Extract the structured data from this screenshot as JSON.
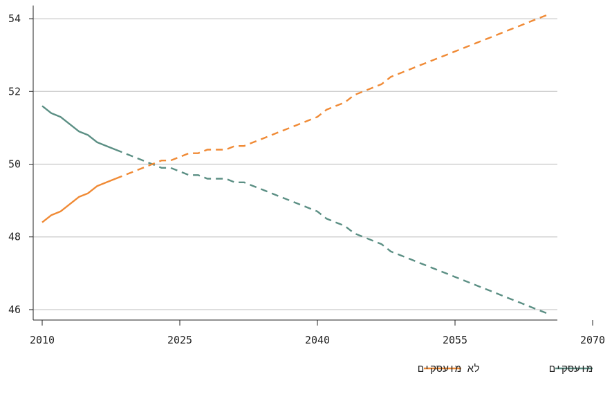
{
  "chart_data": {
    "type": "line",
    "xlim": [
      2010,
      2070
    ],
    "ylim": [
      45.6,
      54.4
    ],
    "x_ticks": [
      2010,
      2025,
      2040,
      2055,
      2070
    ],
    "y_ticks": [
      46,
      48,
      50,
      52,
      54
    ],
    "grid": "horizontal",
    "legend_position": "bottom-right",
    "series": [
      {
        "name": "מועסקים",
        "color": "#5b8f84",
        "actual_until": 2018,
        "x": [
          2010,
          2011,
          2012,
          2013,
          2014,
          2015,
          2016,
          2017,
          2018,
          2019,
          2020,
          2021,
          2022,
          2023,
          2024,
          2025,
          2026,
          2027,
          2028,
          2029,
          2030,
          2031,
          2032,
          2033,
          2034,
          2035,
          2036,
          2037,
          2038,
          2039,
          2040,
          2041,
          2042,
          2043,
          2044,
          2045,
          2046,
          2047,
          2048,
          2049,
          2050,
          2051,
          2052,
          2053,
          2054,
          2055,
          2056,
          2057,
          2058,
          2059,
          2060,
          2061,
          2062,
          2063,
          2064,
          2065
        ],
        "values": [
          51.6,
          51.4,
          51.3,
          51.1,
          50.9,
          50.8,
          50.6,
          50.5,
          50.4,
          50.3,
          50.2,
          50.1,
          50.0,
          49.9,
          49.9,
          49.8,
          49.7,
          49.7,
          49.6,
          49.6,
          49.6,
          49.5,
          49.5,
          49.4,
          49.3,
          49.2,
          49.1,
          49.0,
          48.9,
          48.8,
          48.7,
          48.5,
          48.4,
          48.3,
          48.1,
          48.0,
          47.9,
          47.8,
          47.6,
          47.5,
          47.4,
          47.3,
          47.2,
          47.1,
          47.0,
          46.9,
          46.8,
          46.7,
          46.6,
          46.5,
          46.4,
          46.3,
          46.2,
          46.1,
          46.0,
          45.9
        ]
      },
      {
        "name": "לא מועסקים",
        "color": "#f08a35",
        "actual_until": 2018,
        "x": [
          2010,
          2011,
          2012,
          2013,
          2014,
          2015,
          2016,
          2017,
          2018,
          2019,
          2020,
          2021,
          2022,
          2023,
          2024,
          2025,
          2026,
          2027,
          2028,
          2029,
          2030,
          2031,
          2032,
          2033,
          2034,
          2035,
          2036,
          2037,
          2038,
          2039,
          2040,
          2041,
          2042,
          2043,
          2044,
          2045,
          2046,
          2047,
          2048,
          2049,
          2050,
          2051,
          2052,
          2053,
          2054,
          2055,
          2056,
          2057,
          2058,
          2059,
          2060,
          2061,
          2062,
          2063,
          2064,
          2065
        ],
        "values": [
          48.4,
          48.6,
          48.7,
          48.9,
          49.1,
          49.2,
          49.4,
          49.5,
          49.6,
          49.7,
          49.8,
          49.9,
          50.0,
          50.1,
          50.1,
          50.2,
          50.3,
          50.3,
          50.4,
          50.4,
          50.4,
          50.5,
          50.5,
          50.6,
          50.7,
          50.8,
          50.9,
          51.0,
          51.1,
          51.2,
          51.3,
          51.5,
          51.6,
          51.7,
          51.9,
          52.0,
          52.1,
          52.2,
          52.4,
          52.5,
          52.6,
          52.7,
          52.8,
          52.9,
          53.0,
          53.1,
          53.2,
          53.3,
          53.4,
          53.5,
          53.6,
          53.7,
          53.8,
          53.9,
          54.0,
          54.1
        ]
      }
    ]
  }
}
